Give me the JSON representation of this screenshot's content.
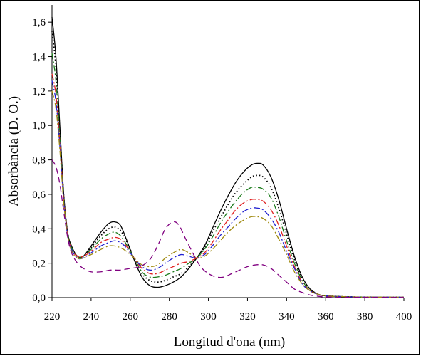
{
  "chart_data": {
    "type": "line",
    "title": "",
    "xlabel": "Longitud d'ona (nm)",
    "ylabel": "Absorbància (D. O.)",
    "xlim": [
      220,
      400
    ],
    "ylim": [
      0,
      1.7
    ],
    "xticks": [
      220,
      240,
      260,
      280,
      300,
      320,
      340,
      360,
      380,
      400
    ],
    "xtick_labels": [
      "220",
      "240",
      "260",
      "280",
      "300",
      "320",
      "340",
      "360",
      "380",
      "400"
    ],
    "yticks": [
      0,
      0.2,
      0.4,
      0.6,
      0.8,
      1.0,
      1.2,
      1.4,
      1.6
    ],
    "ytick_labels": [
      "0,0",
      "0,2",
      "0,4",
      "0,6",
      "0,8",
      "1,0",
      "1,2",
      "1,4",
      "1,6"
    ],
    "grid": false,
    "legend": "none",
    "series": [
      {
        "color": "#000000",
        "style": "solid",
        "points": [
          [
            220,
            1.63
          ],
          [
            222,
            1.4
          ],
          [
            224,
            1.0
          ],
          [
            226,
            0.6
          ],
          [
            228,
            0.38
          ],
          [
            230,
            0.3
          ],
          [
            233,
            0.24
          ],
          [
            236,
            0.24
          ],
          [
            240,
            0.3
          ],
          [
            245,
            0.38
          ],
          [
            249,
            0.43
          ],
          [
            252,
            0.44
          ],
          [
            255,
            0.42
          ],
          [
            258,
            0.34
          ],
          [
            262,
            0.22
          ],
          [
            266,
            0.12
          ],
          [
            270,
            0.07
          ],
          [
            274,
            0.06
          ],
          [
            278,
            0.07
          ],
          [
            282,
            0.09
          ],
          [
            286,
            0.12
          ],
          [
            290,
            0.17
          ],
          [
            294,
            0.23
          ],
          [
            298,
            0.3
          ],
          [
            302,
            0.4
          ],
          [
            306,
            0.5
          ],
          [
            310,
            0.59
          ],
          [
            314,
            0.67
          ],
          [
            318,
            0.73
          ],
          [
            322,
            0.77
          ],
          [
            325,
            0.78
          ],
          [
            328,
            0.77
          ],
          [
            332,
            0.7
          ],
          [
            336,
            0.57
          ],
          [
            340,
            0.4
          ],
          [
            344,
            0.24
          ],
          [
            348,
            0.12
          ],
          [
            352,
            0.05
          ],
          [
            356,
            0.02
          ],
          [
            360,
            0.01
          ],
          [
            370,
            0.005
          ],
          [
            380,
            0.003
          ],
          [
            400,
            0.002
          ]
        ]
      },
      {
        "color": "#000000",
        "style": "dotted",
        "points": [
          [
            220,
            1.55
          ],
          [
            222,
            1.34
          ],
          [
            224,
            0.97
          ],
          [
            226,
            0.59
          ],
          [
            228,
            0.38
          ],
          [
            230,
            0.29
          ],
          [
            233,
            0.24
          ],
          [
            236,
            0.24
          ],
          [
            240,
            0.29
          ],
          [
            245,
            0.36
          ],
          [
            249,
            0.4
          ],
          [
            252,
            0.41
          ],
          [
            255,
            0.39
          ],
          [
            258,
            0.33
          ],
          [
            262,
            0.23
          ],
          [
            266,
            0.14
          ],
          [
            270,
            0.1
          ],
          [
            274,
            0.09
          ],
          [
            278,
            0.1
          ],
          [
            282,
            0.12
          ],
          [
            286,
            0.14
          ],
          [
            290,
            0.18
          ],
          [
            294,
            0.23
          ],
          [
            298,
            0.29
          ],
          [
            302,
            0.38
          ],
          [
            306,
            0.46
          ],
          [
            310,
            0.54
          ],
          [
            314,
            0.61
          ],
          [
            318,
            0.66
          ],
          [
            322,
            0.7
          ],
          [
            325,
            0.71
          ],
          [
            328,
            0.7
          ],
          [
            332,
            0.64
          ],
          [
            336,
            0.52
          ],
          [
            340,
            0.37
          ],
          [
            344,
            0.22
          ],
          [
            348,
            0.11
          ],
          [
            352,
            0.05
          ],
          [
            356,
            0.02
          ],
          [
            360,
            0.01
          ],
          [
            370,
            0.005
          ],
          [
            380,
            0.003
          ],
          [
            400,
            0.002
          ]
        ]
      },
      {
        "color": "#1a7a1a",
        "style": "dashdot",
        "points": [
          [
            220,
            1.42
          ],
          [
            222,
            1.26
          ],
          [
            224,
            0.93
          ],
          [
            226,
            0.58
          ],
          [
            228,
            0.37
          ],
          [
            230,
            0.29
          ],
          [
            233,
            0.24
          ],
          [
            236,
            0.24
          ],
          [
            240,
            0.28
          ],
          [
            245,
            0.34
          ],
          [
            249,
            0.37
          ],
          [
            252,
            0.38
          ],
          [
            255,
            0.36
          ],
          [
            258,
            0.31
          ],
          [
            262,
            0.23
          ],
          [
            266,
            0.15
          ],
          [
            270,
            0.12
          ],
          [
            274,
            0.12
          ],
          [
            278,
            0.13
          ],
          [
            282,
            0.15
          ],
          [
            286,
            0.17
          ],
          [
            290,
            0.2
          ],
          [
            294,
            0.23
          ],
          [
            298,
            0.28
          ],
          [
            302,
            0.35
          ],
          [
            306,
            0.43
          ],
          [
            310,
            0.5
          ],
          [
            314,
            0.56
          ],
          [
            318,
            0.61
          ],
          [
            322,
            0.64
          ],
          [
            325,
            0.64
          ],
          [
            328,
            0.63
          ],
          [
            332,
            0.58
          ],
          [
            336,
            0.47
          ],
          [
            340,
            0.33
          ],
          [
            344,
            0.2
          ],
          [
            348,
            0.1
          ],
          [
            352,
            0.04
          ],
          [
            356,
            0.02
          ],
          [
            360,
            0.01
          ],
          [
            370,
            0.005
          ],
          [
            380,
            0.003
          ],
          [
            400,
            0.002
          ]
        ]
      },
      {
        "color": "#e02020",
        "style": "dashdot",
        "points": [
          [
            220,
            1.3
          ],
          [
            222,
            1.18
          ],
          [
            224,
            0.9
          ],
          [
            226,
            0.57
          ],
          [
            228,
            0.37
          ],
          [
            230,
            0.28
          ],
          [
            233,
            0.24
          ],
          [
            236,
            0.24
          ],
          [
            240,
            0.27
          ],
          [
            245,
            0.32
          ],
          [
            249,
            0.34
          ],
          [
            252,
            0.35
          ],
          [
            255,
            0.34
          ],
          [
            258,
            0.3
          ],
          [
            262,
            0.23
          ],
          [
            266,
            0.17
          ],
          [
            270,
            0.14
          ],
          [
            274,
            0.14
          ],
          [
            278,
            0.16
          ],
          [
            282,
            0.18
          ],
          [
            286,
            0.2
          ],
          [
            290,
            0.21
          ],
          [
            294,
            0.23
          ],
          [
            298,
            0.26
          ],
          [
            302,
            0.32
          ],
          [
            306,
            0.39
          ],
          [
            310,
            0.45
          ],
          [
            314,
            0.51
          ],
          [
            318,
            0.55
          ],
          [
            322,
            0.57
          ],
          [
            325,
            0.57
          ],
          [
            328,
            0.56
          ],
          [
            332,
            0.51
          ],
          [
            336,
            0.42
          ],
          [
            340,
            0.3
          ],
          [
            344,
            0.18
          ],
          [
            348,
            0.09
          ],
          [
            352,
            0.04
          ],
          [
            356,
            0.02
          ],
          [
            360,
            0.01
          ],
          [
            370,
            0.005
          ],
          [
            380,
            0.003
          ],
          [
            400,
            0.002
          ]
        ]
      },
      {
        "color": "#2020d0",
        "style": "dashdot",
        "points": [
          [
            220,
            1.26
          ],
          [
            222,
            1.14
          ],
          [
            224,
            0.88
          ],
          [
            226,
            0.56
          ],
          [
            228,
            0.36
          ],
          [
            230,
            0.28
          ],
          [
            233,
            0.23
          ],
          [
            236,
            0.23
          ],
          [
            240,
            0.26
          ],
          [
            245,
            0.3
          ],
          [
            249,
            0.32
          ],
          [
            252,
            0.33
          ],
          [
            255,
            0.32
          ],
          [
            258,
            0.29
          ],
          [
            262,
            0.23
          ],
          [
            266,
            0.18
          ],
          [
            270,
            0.16
          ],
          [
            274,
            0.17
          ],
          [
            278,
            0.2
          ],
          [
            282,
            0.23
          ],
          [
            286,
            0.25
          ],
          [
            290,
            0.24
          ],
          [
            294,
            0.23
          ],
          [
            298,
            0.25
          ],
          [
            302,
            0.3
          ],
          [
            306,
            0.36
          ],
          [
            310,
            0.41
          ],
          [
            314,
            0.46
          ],
          [
            318,
            0.5
          ],
          [
            322,
            0.52
          ],
          [
            325,
            0.52
          ],
          [
            328,
            0.51
          ],
          [
            332,
            0.46
          ],
          [
            336,
            0.38
          ],
          [
            340,
            0.27
          ],
          [
            344,
            0.17
          ],
          [
            348,
            0.08
          ],
          [
            352,
            0.04
          ],
          [
            356,
            0.02
          ],
          [
            360,
            0.01
          ],
          [
            370,
            0.005
          ],
          [
            380,
            0.003
          ],
          [
            400,
            0.002
          ]
        ]
      },
      {
        "color": "#a08a10",
        "style": "dashdot",
        "points": [
          [
            220,
            1.2
          ],
          [
            222,
            1.1
          ],
          [
            224,
            0.86
          ],
          [
            226,
            0.55
          ],
          [
            228,
            0.36
          ],
          [
            230,
            0.27
          ],
          [
            233,
            0.23
          ],
          [
            236,
            0.23
          ],
          [
            240,
            0.25
          ],
          [
            245,
            0.28
          ],
          [
            249,
            0.3
          ],
          [
            252,
            0.3
          ],
          [
            255,
            0.29
          ],
          [
            258,
            0.27
          ],
          [
            262,
            0.23
          ],
          [
            266,
            0.19
          ],
          [
            270,
            0.18
          ],
          [
            274,
            0.19
          ],
          [
            278,
            0.23
          ],
          [
            282,
            0.26
          ],
          [
            286,
            0.28
          ],
          [
            290,
            0.26
          ],
          [
            294,
            0.23
          ],
          [
            298,
            0.24
          ],
          [
            302,
            0.28
          ],
          [
            306,
            0.33
          ],
          [
            310,
            0.38
          ],
          [
            314,
            0.42
          ],
          [
            318,
            0.45
          ],
          [
            322,
            0.47
          ],
          [
            325,
            0.47
          ],
          [
            328,
            0.46
          ],
          [
            332,
            0.42
          ],
          [
            336,
            0.34
          ],
          [
            340,
            0.25
          ],
          [
            344,
            0.15
          ],
          [
            348,
            0.08
          ],
          [
            352,
            0.04
          ],
          [
            356,
            0.02
          ],
          [
            360,
            0.01
          ],
          [
            370,
            0.005
          ],
          [
            380,
            0.003
          ],
          [
            400,
            0.002
          ]
        ]
      },
      {
        "color": "#800080",
        "style": "dashed",
        "points": [
          [
            220,
            0.8
          ],
          [
            222,
            0.76
          ],
          [
            224,
            0.66
          ],
          [
            226,
            0.5
          ],
          [
            228,
            0.35
          ],
          [
            230,
            0.26
          ],
          [
            233,
            0.2
          ],
          [
            236,
            0.17
          ],
          [
            240,
            0.15
          ],
          [
            245,
            0.15
          ],
          [
            250,
            0.16
          ],
          [
            255,
            0.16
          ],
          [
            260,
            0.17
          ],
          [
            265,
            0.18
          ],
          [
            270,
            0.22
          ],
          [
            274,
            0.3
          ],
          [
            278,
            0.4
          ],
          [
            282,
            0.44
          ],
          [
            285,
            0.42
          ],
          [
            288,
            0.35
          ],
          [
            292,
            0.26
          ],
          [
            296,
            0.18
          ],
          [
            300,
            0.14
          ],
          [
            304,
            0.12
          ],
          [
            308,
            0.12
          ],
          [
            312,
            0.14
          ],
          [
            316,
            0.16
          ],
          [
            320,
            0.18
          ],
          [
            324,
            0.19
          ],
          [
            328,
            0.19
          ],
          [
            332,
            0.17
          ],
          [
            336,
            0.13
          ],
          [
            340,
            0.09
          ],
          [
            344,
            0.05
          ],
          [
            348,
            0.03
          ],
          [
            352,
            0.015
          ],
          [
            356,
            0.008
          ],
          [
            360,
            0.004
          ],
          [
            370,
            0.002
          ],
          [
            400,
            0.001
          ]
        ]
      }
    ]
  }
}
